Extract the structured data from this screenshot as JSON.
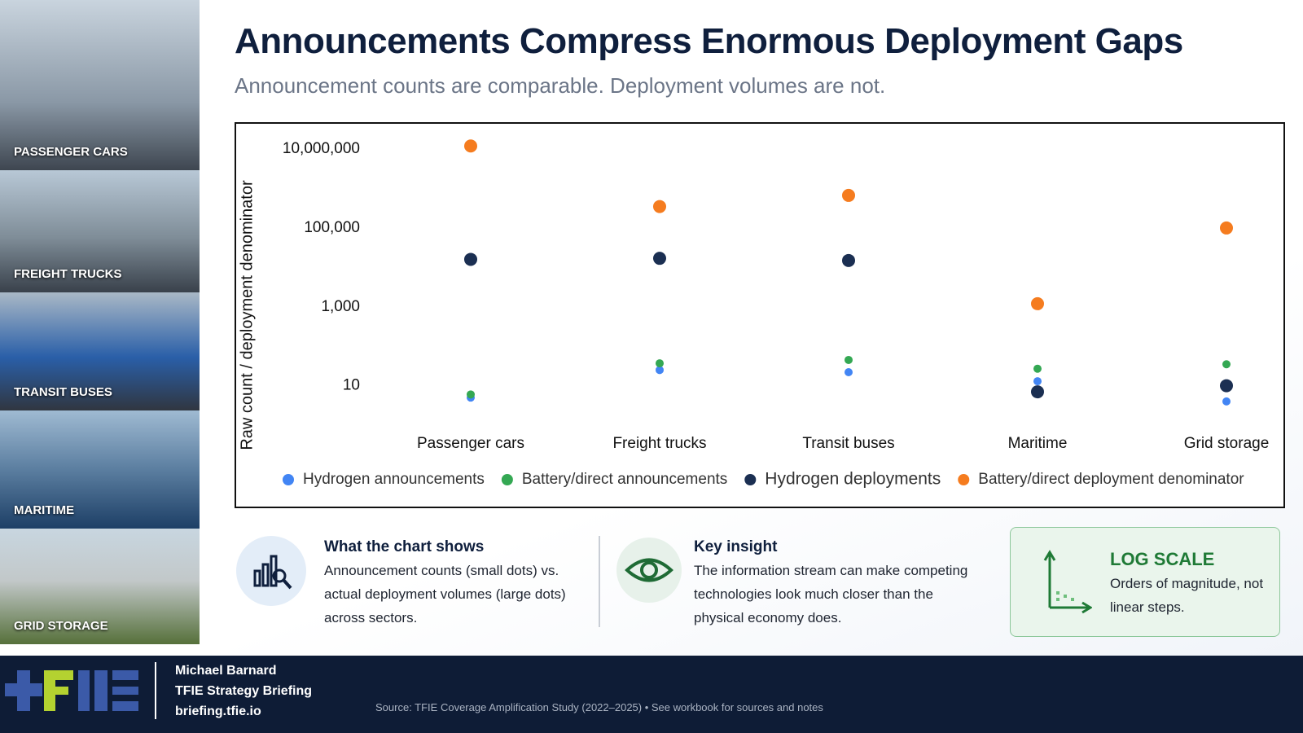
{
  "chart_data": {
    "type": "scatter",
    "title": "Announcements Compress Enormous Deployment Gaps",
    "subtitle": "Announcement counts are comparable. Deployment volumes are not.",
    "y_label": "Raw count / deployment denominator",
    "categories": [
      "Passenger cars",
      "Freight trucks",
      "Transit buses",
      "Maritime",
      "Grid storage"
    ],
    "series": [
      {
        "name": "Hydrogen announcements",
        "color": "#4285f4",
        "values": [
          5,
          25,
          22,
          13,
          4
        ]
      },
      {
        "name": "Battery/direct announcements",
        "color": "#34a853",
        "values": [
          6,
          37,
          45,
          27,
          35
        ]
      },
      {
        "name": "Hydrogen deployments",
        "color": "#1b2f52",
        "values": [
          16000,
          17000,
          15000,
          7,
          10
        ]
      },
      {
        "name": "Battery/direct deployment denominator",
        "color": "#f57c1f",
        "values": [
          12000000,
          350000,
          670000,
          1200,
          100000
        ]
      }
    ],
    "yscale": "log",
    "ylim": [
      1,
      30000000
    ],
    "yticks": [
      10,
      {
        "value": 1000,
        "label": "1,000"
      },
      {
        "value": 100000,
        "label": "100,000"
      },
      {
        "value": 10000000,
        "label": "10,000,000"
      }
    ],
    "grid": false,
    "legend": "bottom"
  },
  "sidebar": [
    "PASSENGER CARS",
    "FREIGHT TRUCKS",
    "TRANSIT BUSES",
    "MARITIME",
    "GRID STORAGE"
  ],
  "cards": [
    {
      "title": "What the chart shows",
      "body": "Announcement counts (small dots) vs. actual deployment volumes (large dots) across sectors."
    },
    {
      "title": "Key insight",
      "body": "The information stream can make competing technologies look much closer than the physical economy does."
    },
    {
      "title": "LOG SCALE",
      "body": "Orders of magnitude, not linear steps."
    }
  ],
  "footer": {
    "author": "Michael Barnard",
    "publication": "TFIE Strategy Briefing",
    "url": "briefing.tfie.io",
    "source": "Source: TFIE Coverage Amplification Study (2022–2025) • See workbook for sources and notes"
  }
}
